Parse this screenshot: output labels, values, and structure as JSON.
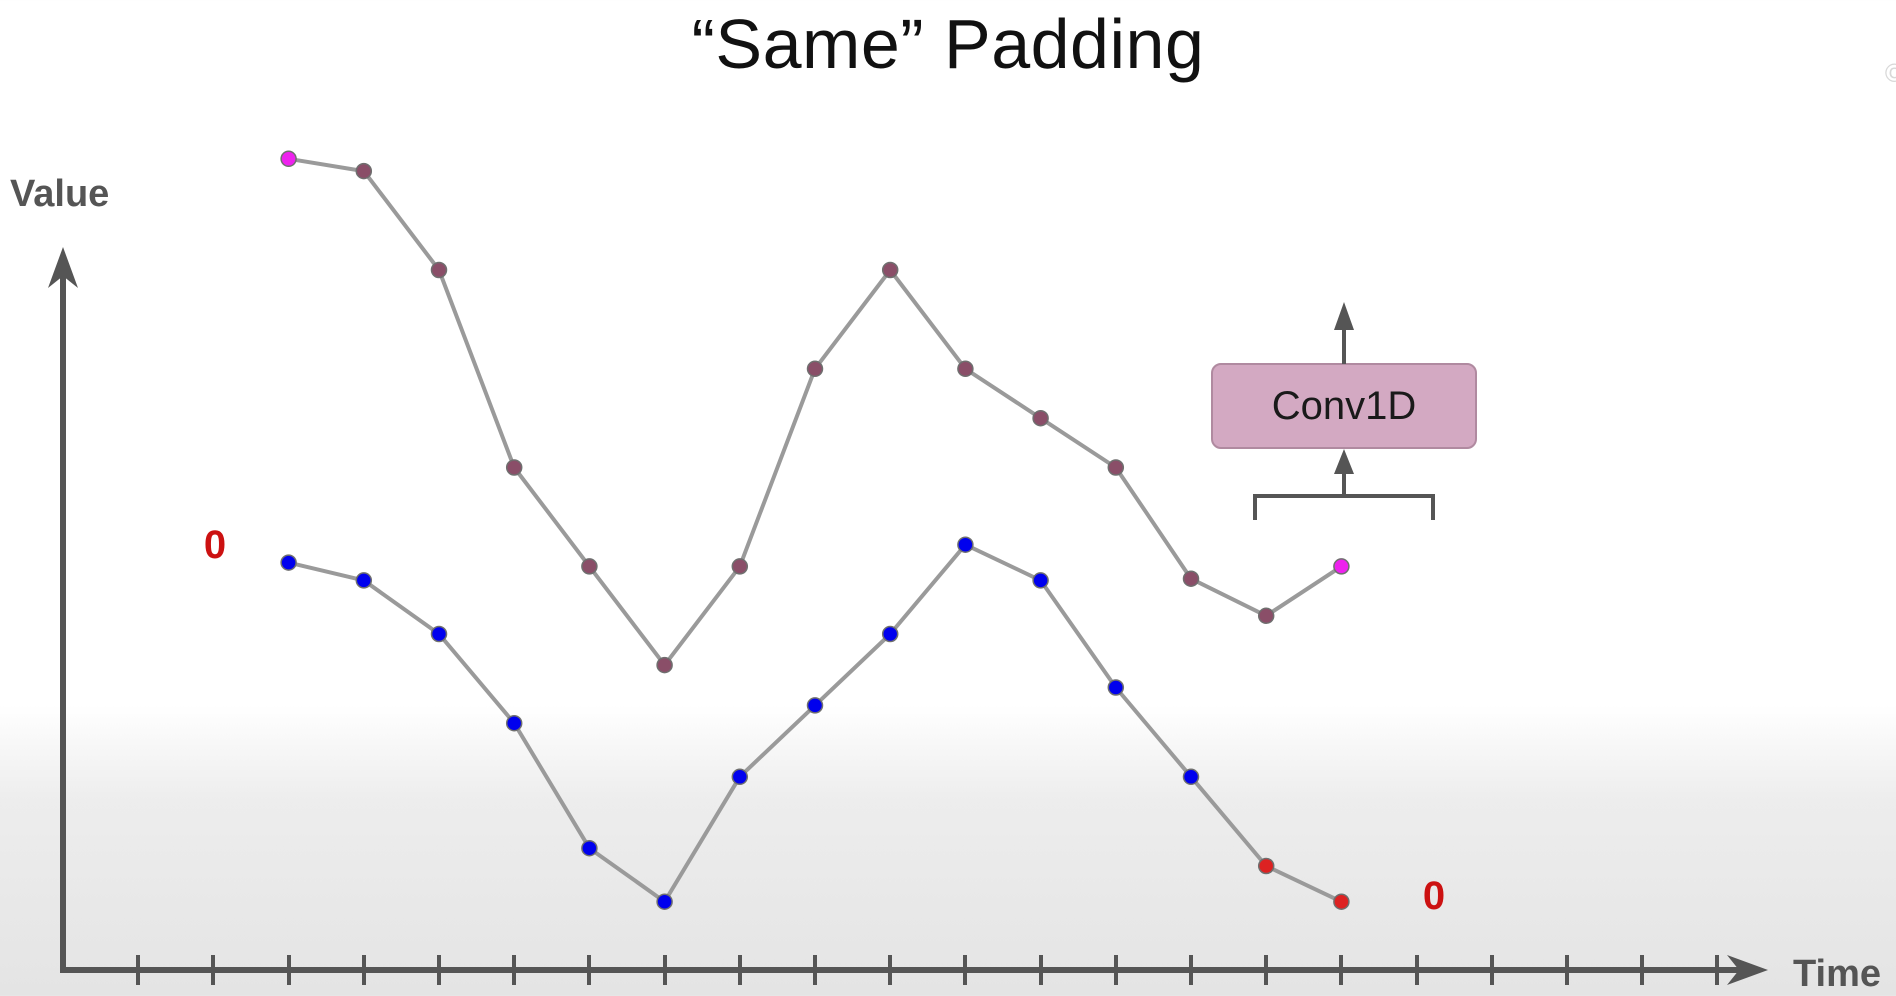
{
  "title": "“Same” Padding",
  "corner_mark": "©",
  "axes": {
    "y_label": "Value",
    "x_label": "Time",
    "tick_count": 22
  },
  "conv_box": {
    "label": "Conv1D"
  },
  "padding_labels": {
    "left": "0",
    "right": "0"
  },
  "colors": {
    "axis": "#555555",
    "line": "#9a9a9a",
    "input_point": "#0000ee",
    "padded_input_point": "#dd2222",
    "output_point": "#8a4e68",
    "output_highlight": "#ee22ee",
    "conv_box_fill": "#d3a9c2",
    "conv_box_border": "#b08aa0",
    "padding_label": "#cc1111"
  },
  "diagram": {
    "input_series": [
      {
        "t": 3,
        "v": 0.92,
        "kind": "input"
      },
      {
        "t": 4,
        "v": 0.87,
        "kind": "input"
      },
      {
        "t": 5,
        "v": 0.72,
        "kind": "input"
      },
      {
        "t": 6,
        "v": 0.47,
        "kind": "input"
      },
      {
        "t": 7,
        "v": 0.12,
        "kind": "input"
      },
      {
        "t": 8,
        "v": -0.03,
        "kind": "input"
      },
      {
        "t": 9,
        "v": 0.32,
        "kind": "input"
      },
      {
        "t": 10,
        "v": 0.52,
        "kind": "input"
      },
      {
        "t": 11,
        "v": 0.72,
        "kind": "input"
      },
      {
        "t": 12,
        "v": 0.97,
        "kind": "input"
      },
      {
        "t": 13,
        "v": 0.87,
        "kind": "input"
      },
      {
        "t": 14,
        "v": 0.57,
        "kind": "input"
      },
      {
        "t": 15,
        "v": 0.32,
        "kind": "input"
      },
      {
        "t": 16,
        "v": 0.07,
        "kind": "padded"
      },
      {
        "t": 17,
        "v": -0.03,
        "kind": "padded"
      }
    ],
    "output_series": [
      {
        "t": 3,
        "v": 0.92,
        "kind": "highlight"
      },
      {
        "t": 4,
        "v": 0.91,
        "kind": "output"
      },
      {
        "t": 5,
        "v": 0.83,
        "kind": "output"
      },
      {
        "t": 6,
        "v": 0.67,
        "kind": "output"
      },
      {
        "t": 7,
        "v": 0.59,
        "kind": "output"
      },
      {
        "t": 8,
        "v": 0.51,
        "kind": "output"
      },
      {
        "t": 9,
        "v": 0.59,
        "kind": "output"
      },
      {
        "t": 10,
        "v": 0.75,
        "kind": "output"
      },
      {
        "t": 11,
        "v": 0.83,
        "kind": "output"
      },
      {
        "t": 12,
        "v": 0.75,
        "kind": "output"
      },
      {
        "t": 13,
        "v": 0.71,
        "kind": "output"
      },
      {
        "t": 14,
        "v": 0.67,
        "kind": "output"
      },
      {
        "t": 15,
        "v": 0.58,
        "kind": "output"
      },
      {
        "t": 16,
        "v": 0.55,
        "kind": "output"
      },
      {
        "t": 17,
        "v": 0.59,
        "kind": "highlight"
      }
    ]
  }
}
